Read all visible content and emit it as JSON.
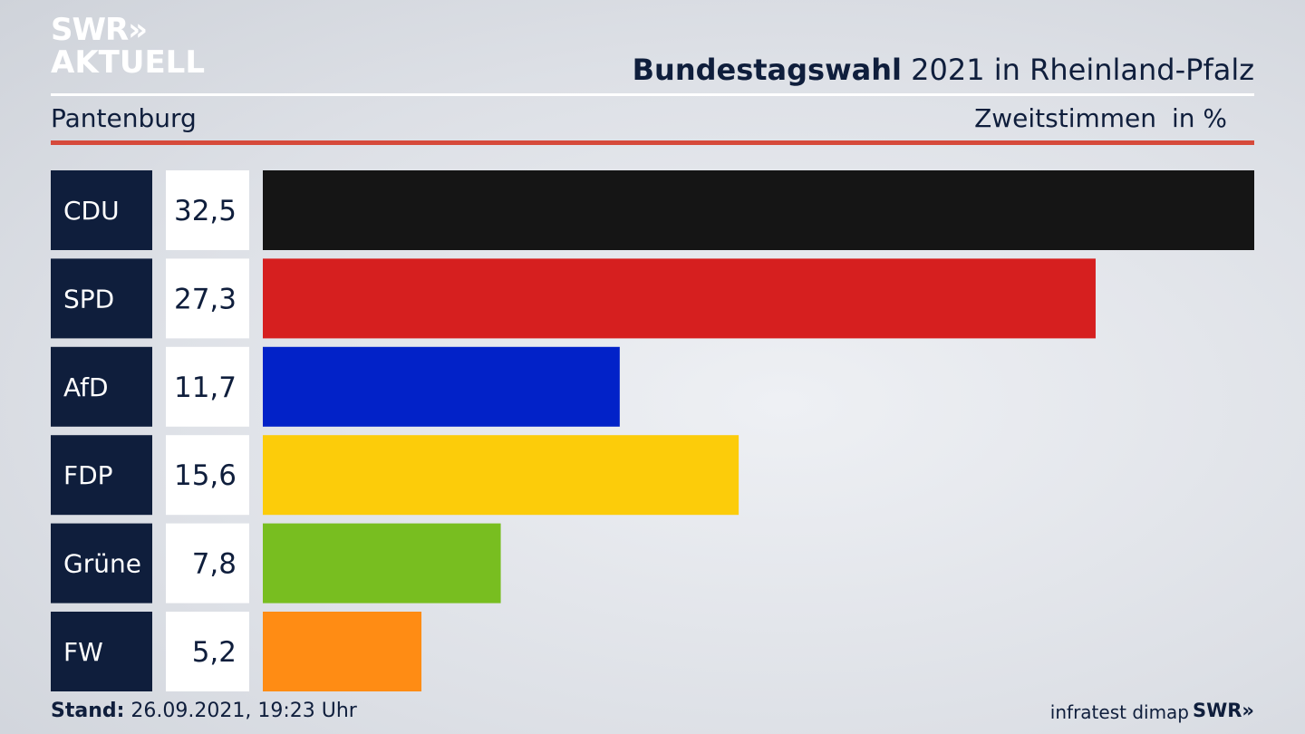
{
  "header": {
    "logo_line1": "SWR",
    "logo_arrows": "»",
    "logo_line2": "AKTUELL",
    "title_bold": "Bundestagswahl",
    "title_rest": " 2021 in Rheinland-Pfalz",
    "region": "Pantenburg",
    "vote_type": "Zweitstimmen",
    "unit": "in %"
  },
  "colors": {
    "accent_red": "#d64a3b",
    "label_box": "#0f1e3c"
  },
  "chart_data": {
    "type": "bar",
    "orientation": "horizontal",
    "title": "Bundestagswahl 2021 in Rheinland-Pfalz",
    "categories": [
      "CDU",
      "SPD",
      "AfD",
      "FDP",
      "Grüne",
      "FW"
    ],
    "values": [
      32.5,
      27.3,
      11.7,
      15.6,
      7.8,
      5.2
    ],
    "value_labels": [
      "32,5",
      "27,3",
      "11,7",
      "15,6",
      "7,8",
      "5,2"
    ],
    "colors": [
      "#151515",
      "#d61f1f",
      "#0222c8",
      "#fccc0a",
      "#78be20",
      "#ff8c14"
    ],
    "xlim": [
      0,
      32.5
    ]
  },
  "footer": {
    "stand_label": "Stand:",
    "stand_value": " 26.09.2021, 19:23 Uhr",
    "source": "infratest dimap",
    "brand": "SWR»"
  }
}
